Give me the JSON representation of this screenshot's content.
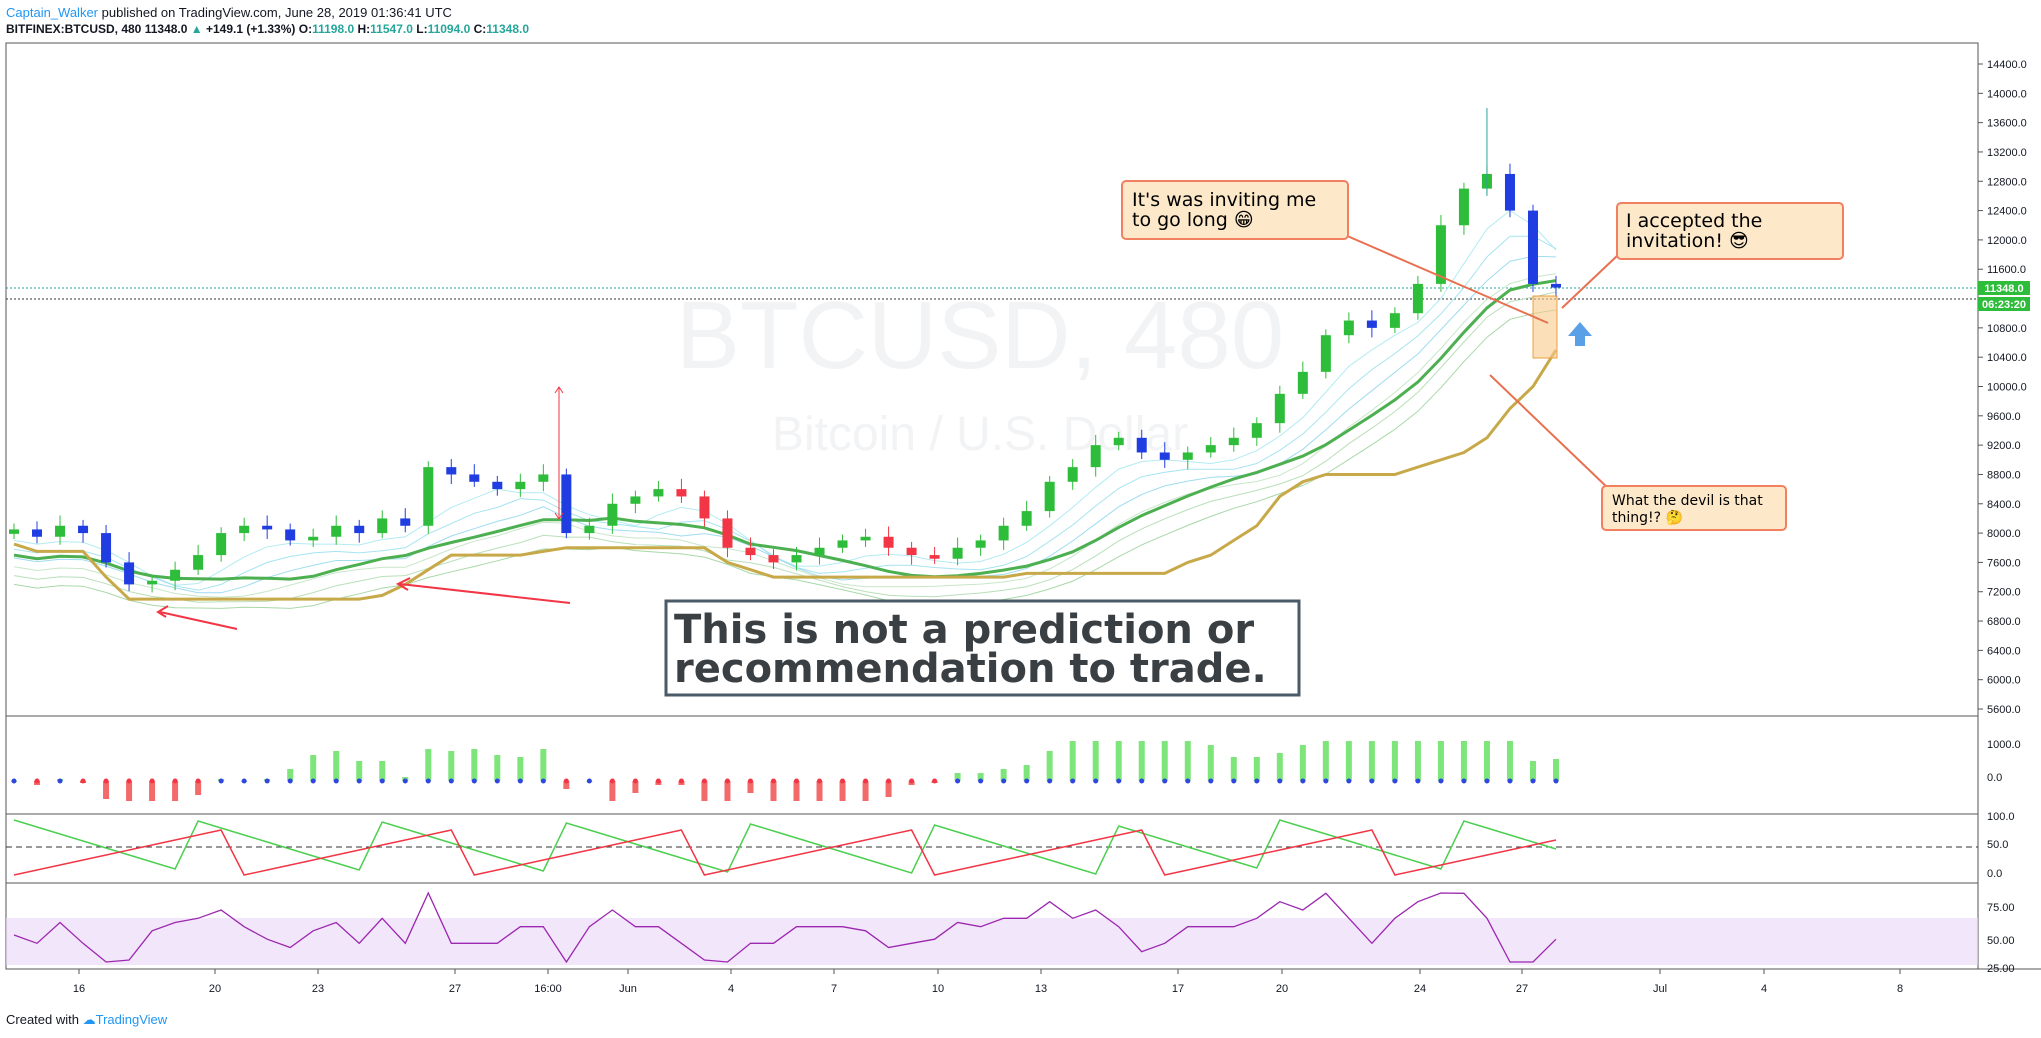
{
  "header": {
    "author": "Captain_Walker",
    "published": "published on TradingView.com, June 28, 2019 01:36:41 UTC",
    "symbol": "BITFINEX:BTCUSD, 480",
    "last": "11348.0",
    "change": "+149.1 (+1.33%)",
    "o_label": "O:",
    "o": "11198.0",
    "h_label": "H:",
    "h": "11547.0",
    "l_label": "L:",
    "l": "11094.0",
    "c_label": "C:",
    "c": "11348.0"
  },
  "footer": {
    "created_with": "Created with",
    "brand": "TradingView"
  },
  "colors": {
    "up": "#2ebd3a",
    "down": "#f23645",
    "blue": "#1f3de0",
    "line_green": "#4caf50",
    "gold": "#c8a94a",
    "note_bg": "#fde9c9",
    "note_border": "#f08060",
    "purple": "#9c27b0"
  },
  "chart_data": {
    "type": "candlestick",
    "watermark": "BTCUSD, 480",
    "watermark_sub": "Bitcoin / U.S. Dollar",
    "y_axis_ticks": [
      "14400.0",
      "14000.0",
      "13600.0",
      "13200.0",
      "12800.0",
      "12400.0",
      "12000.0",
      "11600.0",
      "10800.0",
      "10400.0",
      "10000.0",
      "9600.0",
      "9200.0",
      "8800.0",
      "8400.0",
      "8000.0",
      "7600.0",
      "7200.0",
      "6800.0",
      "6400.0",
      "6000.0",
      "5600.0"
    ],
    "x_axis_ticks": [
      "16",
      "20",
      "23",
      "27",
      "16:00",
      "Jun",
      "4",
      "7",
      "10",
      "13",
      "17",
      "20",
      "24",
      "27",
      "Jul",
      "4",
      "8"
    ],
    "last_price_label": "11348.0",
    "countdown_label": "06:23:20",
    "close_series_approx": [
      8050,
      7950,
      8100,
      8000,
      7600,
      7300,
      7350,
      7500,
      7700,
      8000,
      8100,
      8050,
      7900,
      7950,
      8100,
      8000,
      8200,
      8100,
      8900,
      8800,
      8700,
      8600,
      8700,
      8800,
      8000,
      8100,
      8400,
      8500,
      8600,
      8500,
      8200,
      7800,
      7700,
      7600,
      7700,
      7800,
      7900,
      7950,
      7800,
      7700,
      7650,
      7800,
      7900,
      8100,
      8300,
      8700,
      8900,
      9200,
      9300,
      9100,
      9000,
      9100,
      9200,
      9300,
      9500,
      9900,
      10200,
      10700,
      10900,
      10800,
      11000,
      11400,
      12200,
      12700,
      12900,
      12400,
      11400,
      11350
    ],
    "notes": [
      {
        "text_line1": "It's was inviting me",
        "text_line2": "to go long 😁"
      },
      {
        "text_line1": "I accepted the",
        "text_line2": "invitation! 😎"
      },
      {
        "text_line1": "What the devil is that",
        "text_line2": "thing!? 🤔"
      }
    ],
    "disclaimer_line1": "This is not a prediction or",
    "disclaimer_line2": "recommendation to trade.",
    "pane1_ticks": [
      "1000.0",
      "0.0"
    ],
    "pane2_ticks": [
      "100.0",
      "50.0",
      "0.0"
    ],
    "pane3_ticks": [
      "75.00",
      "50.00",
      "25.00"
    ]
  }
}
